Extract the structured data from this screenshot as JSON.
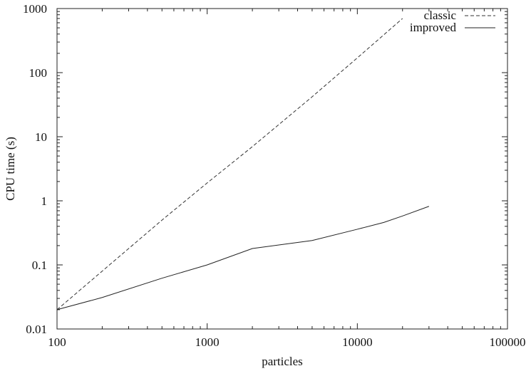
{
  "chart_data": {
    "type": "line",
    "xlabel": "particles",
    "ylabel": "CPU time (s)",
    "xscale": "log",
    "yscale": "log",
    "xlim": [
      100,
      100000
    ],
    "ylim": [
      0.01,
      1000
    ],
    "x_ticks": [
      {
        "value": 100,
        "label": "100"
      },
      {
        "value": 1000,
        "label": "1000"
      },
      {
        "value": 10000,
        "label": "10000"
      },
      {
        "value": 100000,
        "label": "100000"
      }
    ],
    "y_ticks": [
      {
        "value": 0.01,
        "label": "0.01"
      },
      {
        "value": 0.1,
        "label": "0.1"
      },
      {
        "value": 1,
        "label": "1"
      },
      {
        "value": 10,
        "label": "10"
      },
      {
        "value": 100,
        "label": "100"
      },
      {
        "value": 1000,
        "label": "1000"
      }
    ],
    "grid": false,
    "legend_position": "top-right",
    "series": [
      {
        "name": "classic",
        "style": "dashed",
        "color": "#333333",
        "x": [
          100,
          200,
          500,
          1000,
          2000,
          5000,
          10000,
          20000
        ],
        "y": [
          0.02,
          0.08,
          0.5,
          1.9,
          7,
          42,
          170,
          700
        ]
      },
      {
        "name": "improved",
        "style": "solid",
        "color": "#222222",
        "x": [
          100,
          200,
          500,
          1000,
          2000,
          5000,
          10000,
          15000,
          20000,
          30000
        ],
        "y": [
          0.02,
          0.031,
          0.062,
          0.1,
          0.18,
          0.24,
          0.36,
          0.46,
          0.58,
          0.82
        ]
      }
    ]
  }
}
